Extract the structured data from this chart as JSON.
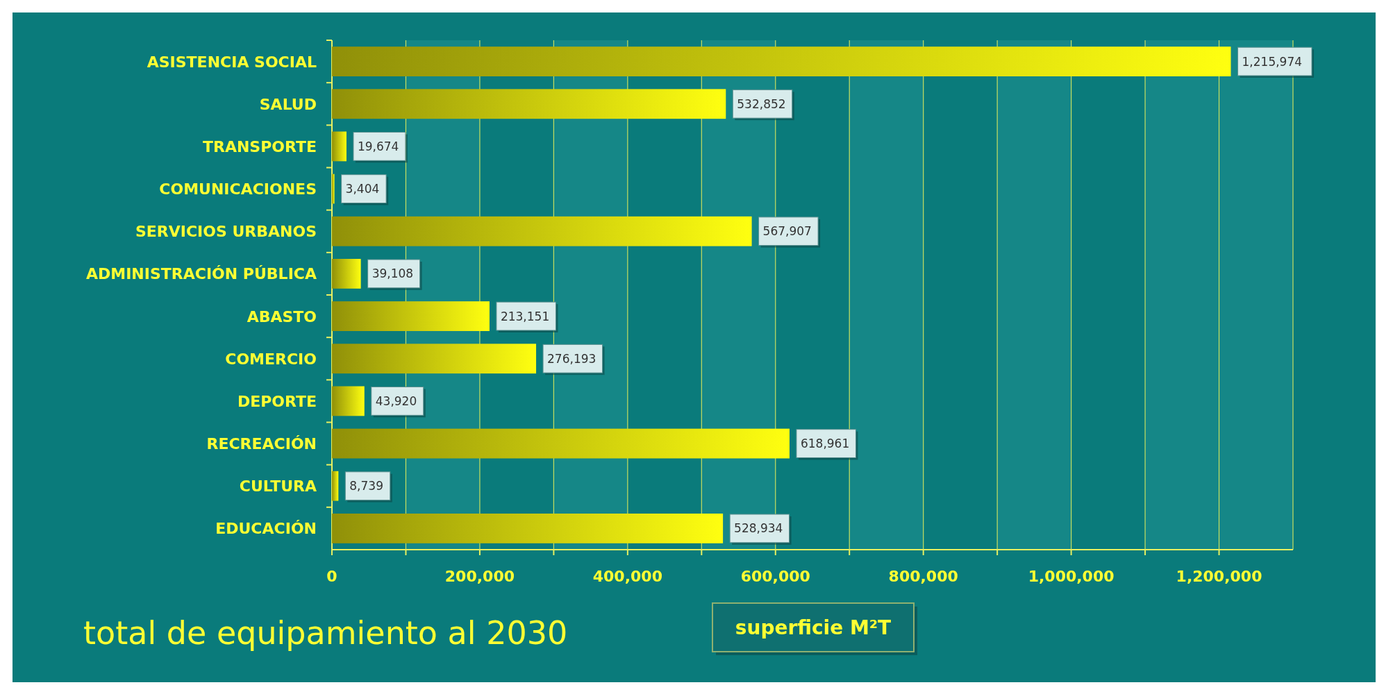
{
  "chart_data": {
    "type": "bar",
    "orientation": "horizontal",
    "title": "total de equipamiento al 2030",
    "xlabel": "superficie M²T",
    "categories": [
      "ASISTENCIA SOCIAL",
      "SALUD",
      "TRANSPORTE",
      "COMUNICACIONES",
      "SERVICIOS URBANOS",
      "ADMINISTRACIÓN PÚBLICA",
      "ABASTO",
      "COMERCIO",
      "DEPORTE",
      "RECREACIÓN",
      "CULTURA",
      "EDUCACIÓN"
    ],
    "values": [
      1215974,
      532852,
      19674,
      3404,
      567907,
      39108,
      213151,
      276193,
      43920,
      618961,
      8739,
      528934
    ],
    "value_labels": [
      "1,215,974",
      "532,852",
      "19,674",
      "3,404",
      "567,907",
      "39,108",
      "213,151",
      "276,193",
      "43,920",
      "618,961",
      "8,739",
      "528,934"
    ],
    "color": "#ffff10",
    "bands": [
      {
        "axis": "x",
        "from": 100000,
        "to": 200000,
        "color": "#158787"
      },
      {
        "axis": "x",
        "from": 300000,
        "to": 400000,
        "color": "#158787"
      },
      {
        "axis": "x",
        "from": 500000,
        "to": 600000,
        "color": "#158787"
      },
      {
        "axis": "x",
        "from": 700000,
        "to": 800000,
        "color": "#158787"
      },
      {
        "axis": "x",
        "from": 900000,
        "to": 1000000,
        "color": "#158787"
      },
      {
        "axis": "x",
        "from": 1100000,
        "to": 1200000,
        "color": "#158787"
      },
      {
        "axis": "x",
        "from": 1200000,
        "to": 1300000,
        "color": "#158787"
      }
    ],
    "grid": true,
    "xlim": [
      0,
      1300000
    ],
    "xticks": [
      {
        "value": 0,
        "label": "0"
      },
      {
        "value": 100000,
        "label": null
      },
      {
        "value": 200000,
        "label": "200,000"
      },
      {
        "value": 300000,
        "label": null
      },
      {
        "value": 400000,
        "label": "400,000"
      },
      {
        "value": 500000,
        "label": null
      },
      {
        "value": 600000,
        "label": "600,000"
      },
      {
        "value": 700000,
        "label": null
      },
      {
        "value": 800000,
        "label": "800,000"
      },
      {
        "value": 900000,
        "label": null
      },
      {
        "value": 1000000,
        "label": "1,000,000"
      },
      {
        "value": 1100000,
        "label": null
      },
      {
        "value": 1200000,
        "label": "1,200,000"
      }
    ]
  }
}
